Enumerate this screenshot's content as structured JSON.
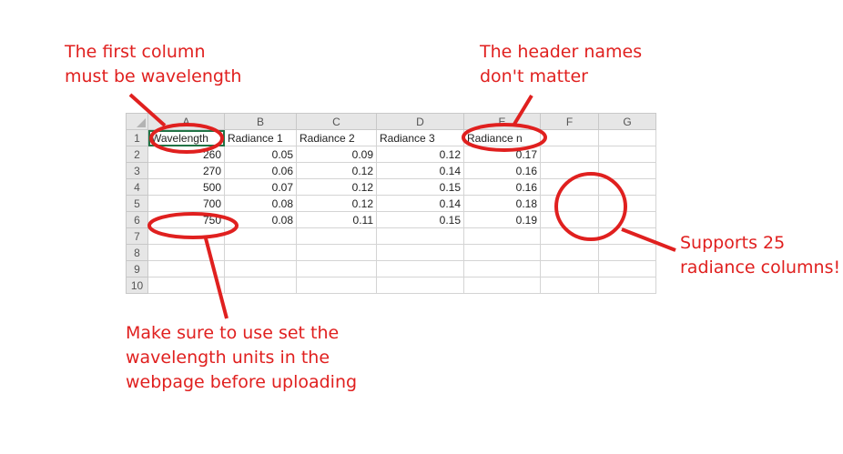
{
  "annotations": {
    "first_column": "The first column\nmust be wavelength",
    "header_names": "The header names\ndon't matter",
    "supports": "Supports 25\nradiance columns!",
    "units": "Make sure to use set the\nwavelength units in the\nwebpage before uploading"
  },
  "colors": {
    "annotation": "#e0201f",
    "selection": "#217346"
  },
  "sheet": {
    "col_letters": [
      "A",
      "B",
      "C",
      "D",
      "E",
      "F",
      "G"
    ],
    "row_numbers": [
      "1",
      "2",
      "3",
      "4",
      "5",
      "6",
      "7",
      "8",
      "9",
      "10"
    ],
    "header": [
      "Wavelength",
      "Radiance 1",
      "Radiance 2",
      "Radiance 3",
      "Radiance n",
      "",
      ""
    ],
    "data": [
      [
        "260",
        "0.05",
        "0.09",
        "0.12",
        "0.17"
      ],
      [
        "270",
        "0.06",
        "0.12",
        "0.14",
        "0.16"
      ],
      [
        "500",
        "0.07",
        "0.12",
        "0.15",
        "0.16"
      ],
      [
        "700",
        "0.08",
        "0.12",
        "0.14",
        "0.18"
      ],
      [
        "750",
        "0.08",
        "0.11",
        "0.15",
        "0.19"
      ]
    ]
  }
}
